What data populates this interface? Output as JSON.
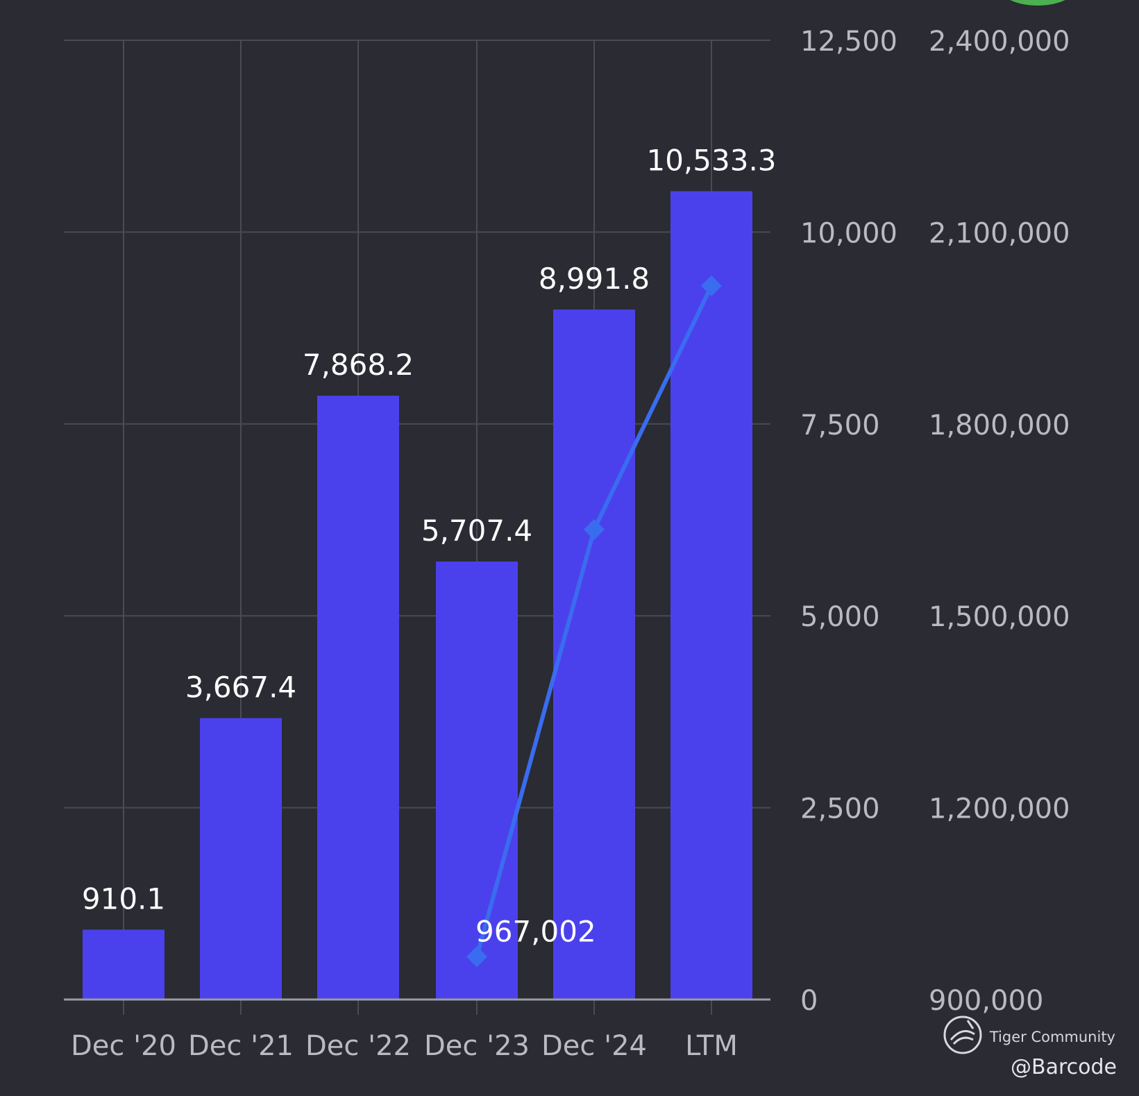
{
  "chart_data": {
    "type": "bar",
    "categories": [
      "Dec '20",
      "Dec '21",
      "Dec '22",
      "Dec '23",
      "Dec '24",
      "LTM"
    ],
    "series": [
      {
        "type": "bar",
        "axis": "left",
        "color": "#4b41ec",
        "values": [
          910.1,
          3667.4,
          7868.2,
          5707.4,
          8991.8,
          10533.3
        ],
        "labels": [
          "910.1",
          "3,667.4",
          "7,868.2",
          "5,707.4",
          "8,991.8",
          "10,533.3"
        ]
      },
      {
        "type": "line",
        "axis": "right",
        "color": "#3a6cf0",
        "marker": "diamond",
        "points": [
          {
            "category": "Dec '23",
            "value": 967002,
            "label": "967,002"
          },
          {
            "category": "Dec '24",
            "value": 1635000,
            "label": ""
          },
          {
            "category": "LTM",
            "value": 2016000,
            "label": ""
          }
        ]
      }
    ],
    "left_axis": {
      "ylim": [
        0,
        12500
      ],
      "ticks": [
        0,
        2500,
        5000,
        7500,
        10000,
        12500
      ],
      "tick_labels": [
        "0",
        "2,500",
        "5,000",
        "7,500",
        "10,000",
        "12,500"
      ]
    },
    "right_axis": {
      "ylim": [
        900000,
        2400000
      ],
      "ticks": [
        900000,
        1200000,
        1500000,
        1800000,
        2100000,
        2400000
      ],
      "tick_labels": [
        "900,000",
        "1,200,000",
        "1,500,000",
        "1,800,000",
        "2,100,000",
        "2,400,000"
      ]
    },
    "grid": true,
    "legend": "none"
  },
  "watermark": {
    "text": "Tiger Community",
    "icon": "tiger-community-logo-icon"
  },
  "credit": "@Barcode",
  "colors": {
    "background": "#2a2b33",
    "grid": "#4a4b54",
    "tick_text": "#b9bac2",
    "label_text": "#ffffff",
    "accent_green": "#4caf50"
  }
}
